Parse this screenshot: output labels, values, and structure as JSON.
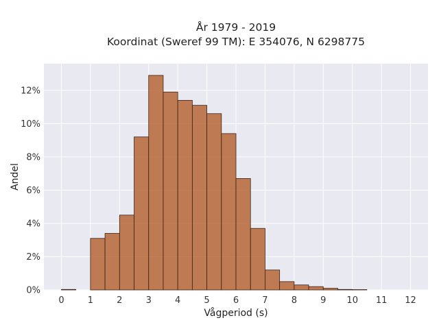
{
  "chart_data": {
    "type": "bar",
    "title_line1": "År 1979 - 2019",
    "title_line2": "Koordinat (Sweref 99 TM): E 354076, N 6298775",
    "xlabel": "Vågperiod (s)",
    "ylabel": "Andel",
    "bin_width": 0.5,
    "x_ticks": [
      0,
      1,
      2,
      3,
      4,
      5,
      6,
      7,
      8,
      9,
      10,
      11,
      12
    ],
    "x_tick_labels": [
      "0",
      "1",
      "2",
      "3",
      "4",
      "5",
      "6",
      "7",
      "8",
      "9",
      "10",
      "11",
      "12"
    ],
    "y_ticks": [
      0,
      2,
      4,
      6,
      8,
      10,
      12
    ],
    "y_tick_labels": [
      "0%",
      "2%",
      "4%",
      "6%",
      "8%",
      "10%",
      "12%"
    ],
    "xlim": [
      -0.6,
      12.6
    ],
    "ylim": [
      0,
      13.6
    ],
    "grid": true,
    "bins": [
      {
        "start": 0.0,
        "end": 0.5,
        "value": 0.03
      },
      {
        "start": 0.5,
        "end": 1.0,
        "value": 0.0
      },
      {
        "start": 1.0,
        "end": 1.5,
        "value": 3.1
      },
      {
        "start": 1.5,
        "end": 2.0,
        "value": 3.4
      },
      {
        "start": 2.0,
        "end": 2.5,
        "value": 4.5
      },
      {
        "start": 2.5,
        "end": 3.0,
        "value": 9.2
      },
      {
        "start": 3.0,
        "end": 3.5,
        "value": 12.9
      },
      {
        "start": 3.5,
        "end": 4.0,
        "value": 11.9
      },
      {
        "start": 4.0,
        "end": 4.5,
        "value": 11.4
      },
      {
        "start": 4.5,
        "end": 5.0,
        "value": 11.1
      },
      {
        "start": 5.0,
        "end": 5.5,
        "value": 10.6
      },
      {
        "start": 5.5,
        "end": 6.0,
        "value": 9.4
      },
      {
        "start": 6.0,
        "end": 6.5,
        "value": 6.7
      },
      {
        "start": 6.5,
        "end": 7.0,
        "value": 3.7
      },
      {
        "start": 7.0,
        "end": 7.5,
        "value": 1.2
      },
      {
        "start": 7.5,
        "end": 8.0,
        "value": 0.5
      },
      {
        "start": 8.0,
        "end": 8.5,
        "value": 0.3
      },
      {
        "start": 8.5,
        "end": 9.0,
        "value": 0.2
      },
      {
        "start": 9.0,
        "end": 9.5,
        "value": 0.1
      },
      {
        "start": 9.5,
        "end": 10.0,
        "value": 0.03
      },
      {
        "start": 10.0,
        "end": 10.5,
        "value": 0.02
      }
    ],
    "colors": {
      "bar": "#b5622f",
      "bar_edge": "#3a2414",
      "plot_background": "#e9e9f1",
      "grid": "#ffffff"
    }
  }
}
